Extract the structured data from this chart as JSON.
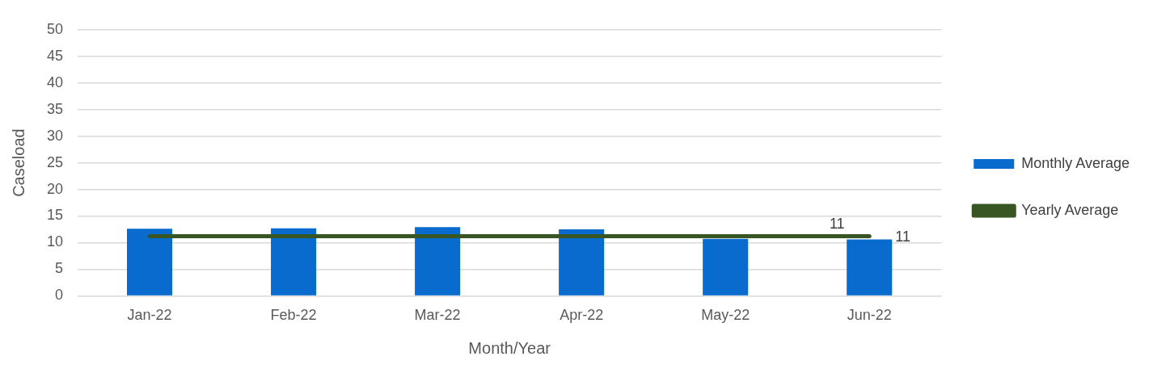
{
  "chart_data": {
    "type": "bar",
    "xlabel": "Month/Year",
    "ylabel": "Caseload",
    "categories": [
      "Jan-22",
      "Feb-22",
      "Mar-22",
      "Apr-22",
      "May-22",
      "Jun-22"
    ],
    "series": [
      {
        "name": "Monthly Average",
        "color": "#0a6bcf",
        "values": [
          12.6,
          12.7,
          12.9,
          12.5,
          10.7,
          10.6
        ],
        "value_labels": [
          null,
          null,
          null,
          null,
          null,
          "11"
        ]
      },
      {
        "name": "Yearly Average",
        "type": "line",
        "color": "#375623",
        "values": [
          11.2,
          11.2,
          11.2,
          11.2,
          11.2,
          11.2
        ],
        "value_labels": [
          null,
          null,
          null,
          null,
          null,
          "11"
        ]
      }
    ],
    "ylim": [
      0,
      50
    ],
    "yticks": [
      0,
      5,
      10,
      15,
      20,
      25,
      30,
      35,
      40,
      45,
      50
    ],
    "grid": "y",
    "legend": "right",
    "marker": "none"
  }
}
